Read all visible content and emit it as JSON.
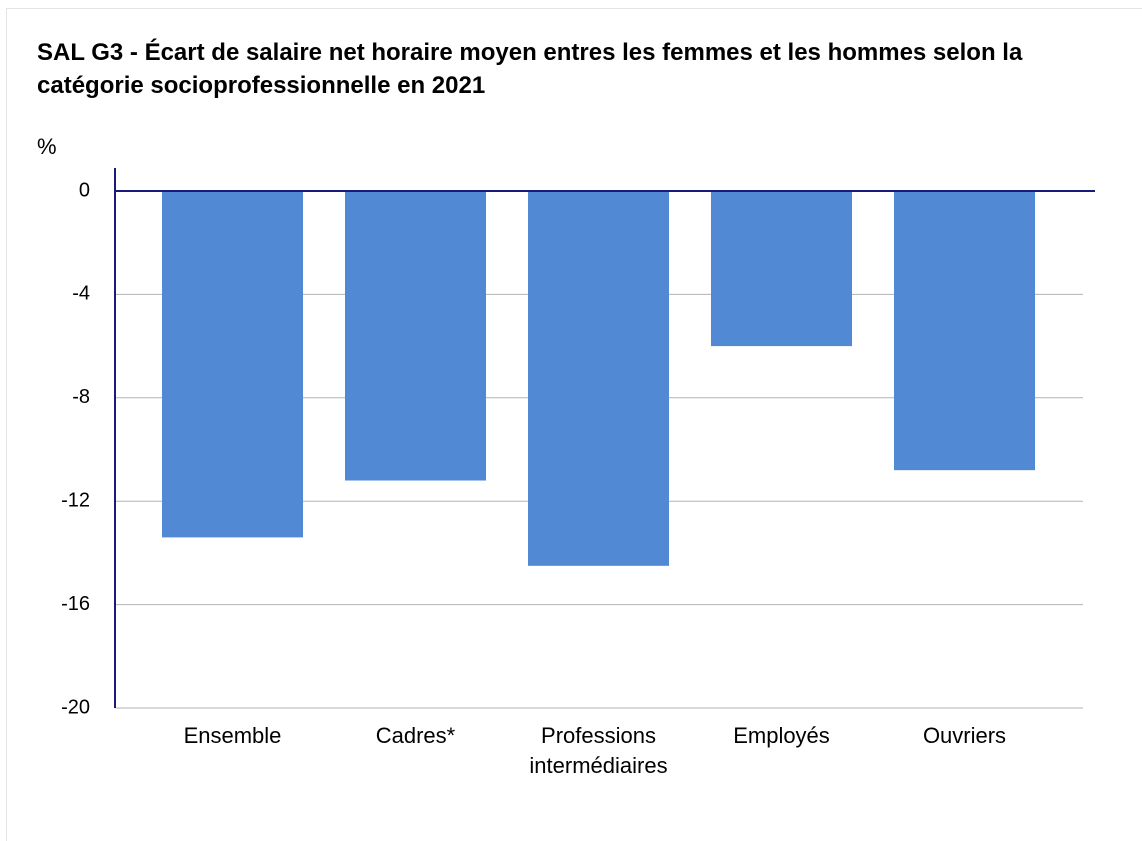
{
  "chart_data": {
    "type": "bar",
    "title": "SAL G3 - Écart de salaire net horaire moyen entres les femmes et les hommes selon la catégorie socioprofessionnelle en 2021",
    "y_label": "%",
    "categories": [
      "Ensemble",
      "Cadres*",
      "Professions intermédiaires",
      "Employés",
      "Ouvriers"
    ],
    "values": [
      -13.4,
      -11.2,
      -14.5,
      -6.0,
      -10.8
    ],
    "color": "#5289d5",
    "ylim": [
      -20,
      0
    ],
    "yticks": [
      0,
      -4,
      -8,
      -12,
      -16,
      -20
    ],
    "grid": true
  }
}
